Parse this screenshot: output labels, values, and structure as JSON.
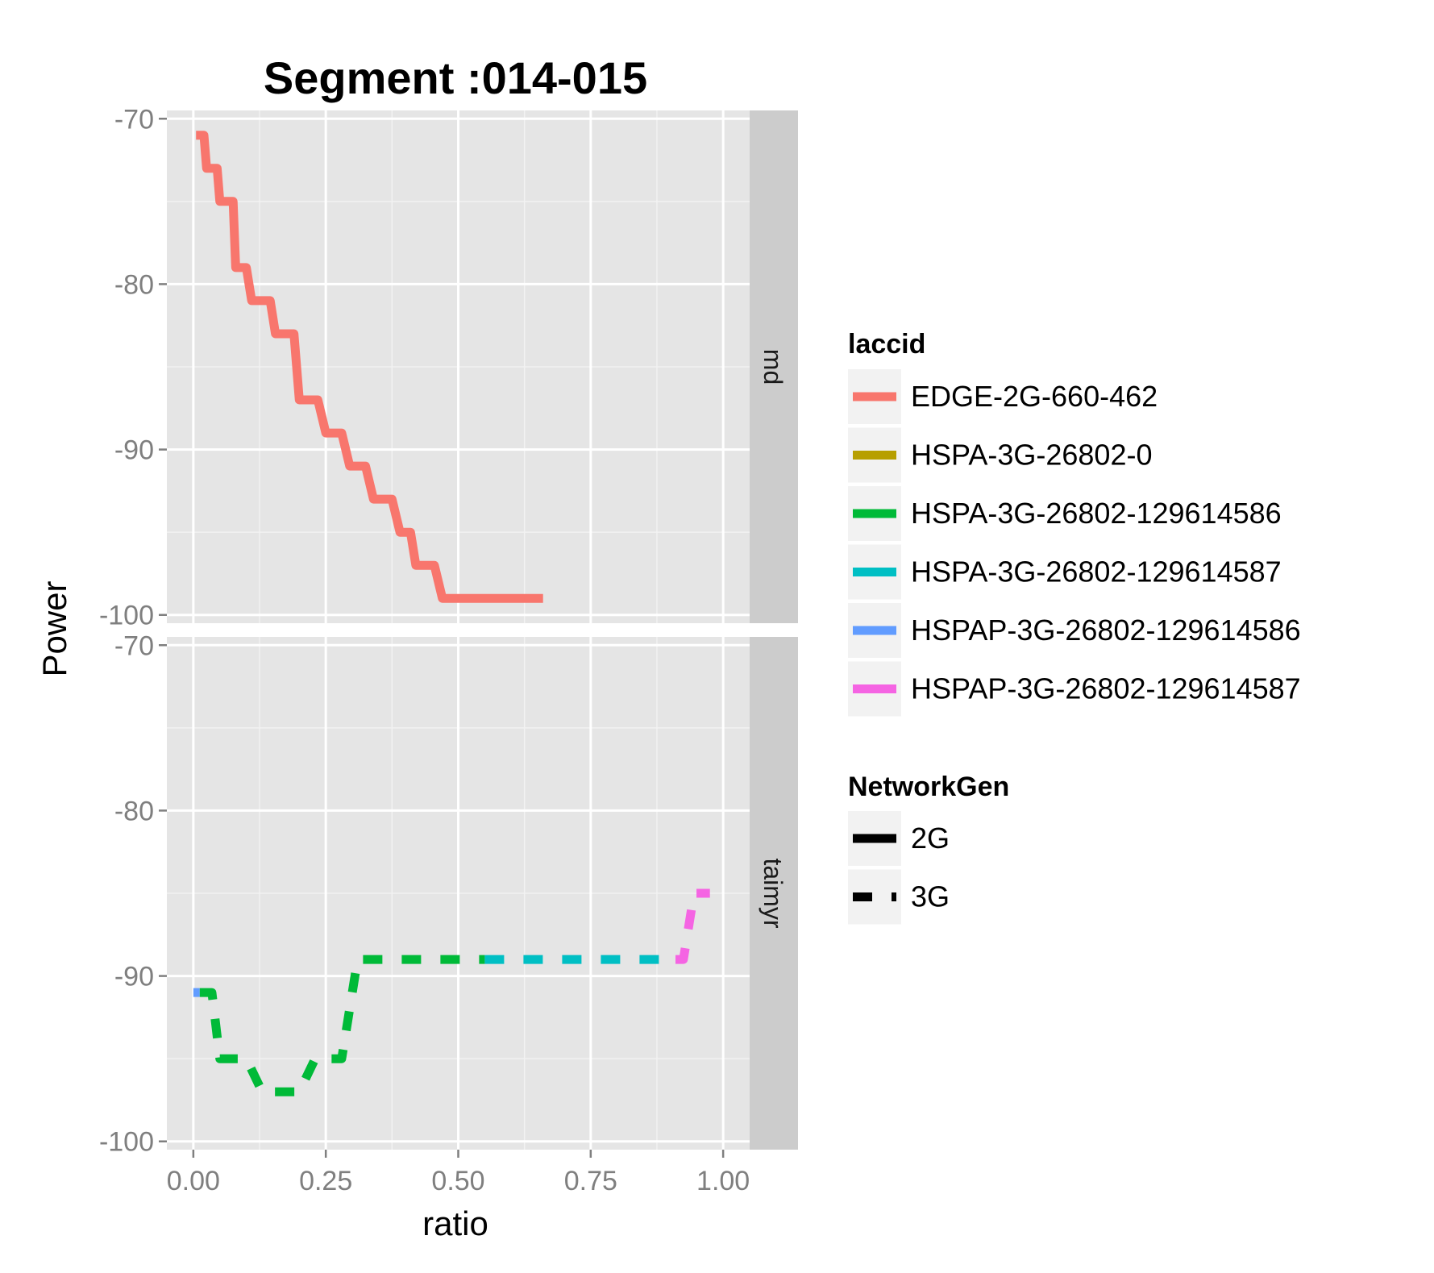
{
  "chart_data": {
    "type": "line",
    "title": "Segment :014-015",
    "xlabel": "ratio",
    "ylabel": "Power",
    "xlim": [
      -0.05,
      1.05
    ],
    "ylim": [
      -100.5,
      -69.5
    ],
    "x_ticks": [
      "0.00",
      "0.25",
      "0.50",
      "0.75",
      "1.00"
    ],
    "x_tick_values": [
      0,
      0.25,
      0.5,
      0.75,
      1.0
    ],
    "y_ticks": [
      "-70",
      "-80",
      "-90",
      "-100"
    ],
    "y_tick_values": [
      -70,
      -80,
      -90,
      -100
    ],
    "grid": true,
    "background": "#e5e5e5",
    "legend_placement": "right",
    "facets": [
      {
        "label": "md",
        "series": [
          {
            "laccid": "EDGE-2G-660-462",
            "network_gen": "2G",
            "color": "#f8766d",
            "points": [
              [
                0.005,
                -71
              ],
              [
                0.02,
                -71
              ],
              [
                0.025,
                -73
              ],
              [
                0.045,
                -73
              ],
              [
                0.05,
                -75
              ],
              [
                0.075,
                -75
              ],
              [
                0.08,
                -79
              ],
              [
                0.1,
                -79
              ],
              [
                0.11,
                -81
              ],
              [
                0.145,
                -81
              ],
              [
                0.155,
                -83
              ],
              [
                0.19,
                -83
              ],
              [
                0.2,
                -87
              ],
              [
                0.235,
                -87
              ],
              [
                0.25,
                -89
              ],
              [
                0.28,
                -89
              ],
              [
                0.295,
                -91
              ],
              [
                0.325,
                -91
              ],
              [
                0.34,
                -93
              ],
              [
                0.375,
                -93
              ],
              [
                0.39,
                -95
              ],
              [
                0.41,
                -95
              ],
              [
                0.42,
                -97
              ],
              [
                0.455,
                -97
              ],
              [
                0.47,
                -99
              ],
              [
                0.66,
                -99
              ]
            ]
          }
        ]
      },
      {
        "label": "taimyr",
        "series": [
          {
            "laccid": "HSPAP-3G-26802-129614586",
            "network_gen": "3G",
            "color": "#619cff",
            "points": [
              [
                0.0,
                -91
              ],
              [
                0.012,
                -91
              ]
            ]
          },
          {
            "laccid": "HSPA-3G-26802-129614586",
            "network_gen": "3G",
            "color": "#00ba38",
            "points": [
              [
                0.012,
                -91
              ],
              [
                0.035,
                -91
              ],
              [
                0.05,
                -95
              ],
              [
                0.1,
                -95
              ],
              [
                0.13,
                -97
              ],
              [
                0.2,
                -97
              ],
              [
                0.23,
                -95
              ],
              [
                0.28,
                -95
              ],
              [
                0.31,
                -89
              ],
              [
                0.55,
                -89
              ]
            ]
          },
          {
            "laccid": "HSPA-3G-26802-129614587",
            "network_gen": "3G",
            "color": "#00bfc4",
            "points": [
              [
                0.55,
                -89
              ],
              [
                0.91,
                -89
              ]
            ]
          },
          {
            "laccid": "HSPAP-3G-26802-129614587",
            "network_gen": "3G",
            "color": "#f564e3",
            "points": [
              [
                0.91,
                -89
              ],
              [
                0.925,
                -89
              ],
              [
                0.945,
                -85
              ],
              [
                0.975,
                -85
              ]
            ]
          }
        ]
      }
    ],
    "legend_color": {
      "title": "laccid",
      "entries": [
        {
          "label": "EDGE-2G-660-462",
          "color": "#f8766d"
        },
        {
          "label": "HSPA-3G-26802-0",
          "color": "#b79f00"
        },
        {
          "label": "HSPA-3G-26802-129614586",
          "color": "#00ba38"
        },
        {
          "label": "HSPA-3G-26802-129614587",
          "color": "#00bfc4"
        },
        {
          "label": "HSPAP-3G-26802-129614586",
          "color": "#619cff"
        },
        {
          "label": "HSPAP-3G-26802-129614587",
          "color": "#f564e3"
        }
      ]
    },
    "legend_linetype": {
      "title": "NetworkGen",
      "entries": [
        {
          "label": "2G",
          "linetype": "solid"
        },
        {
          "label": "3G",
          "linetype": "dashed"
        }
      ]
    }
  }
}
